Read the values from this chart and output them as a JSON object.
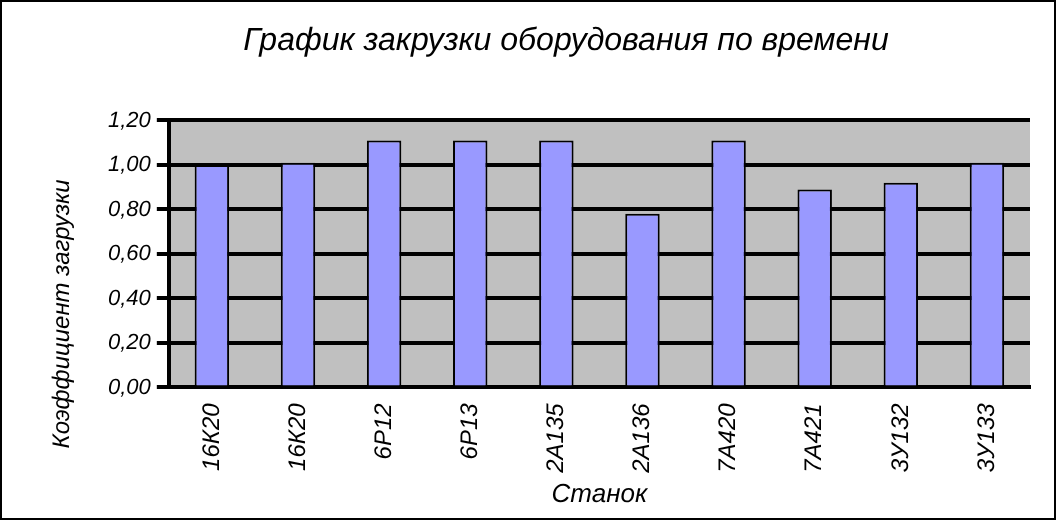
{
  "chart_data": {
    "type": "bar",
    "title": "График закрузки оборудования по времени",
    "xlabel": "Станок",
    "ylabel": "Коэффициент загрузки",
    "categories": [
      "16К20",
      "16К20",
      "6Р12",
      "6Р13",
      "2А135",
      "2А136",
      "7А420",
      "7А421",
      "3У132",
      "3У133"
    ],
    "values": [
      1.0,
      1.01,
      1.11,
      1.11,
      1.11,
      0.78,
      1.11,
      0.89,
      0.92,
      1.01
    ],
    "color": "#9999ff",
    "ylim": [
      0,
      1.2
    ],
    "yticks": [
      {
        "value": 0,
        "label": "0,00"
      },
      {
        "value": 0.2,
        "label": "0,20"
      },
      {
        "value": 0.4,
        "label": "0,40"
      },
      {
        "value": 0.6,
        "label": "0,60"
      },
      {
        "value": 0.8,
        "label": "0,80"
      },
      {
        "value": 1,
        "label": "1,00"
      },
      {
        "value": 1.2,
        "label": "1,20"
      }
    ],
    "grid": "y",
    "legend": false
  }
}
